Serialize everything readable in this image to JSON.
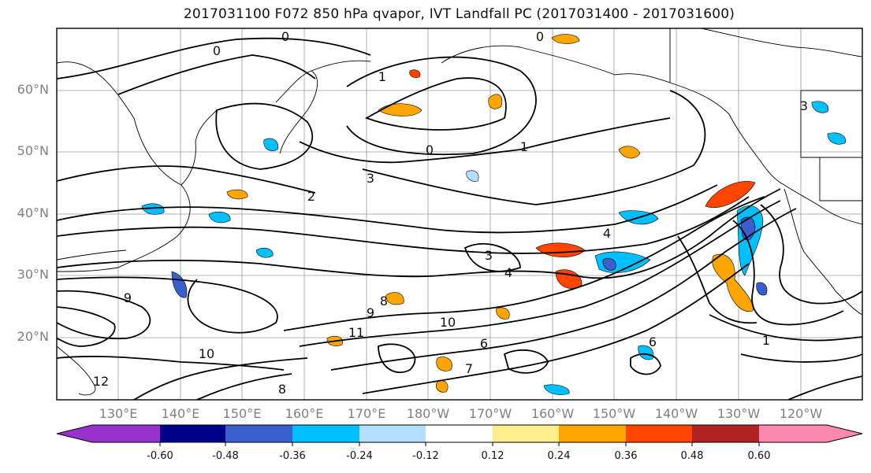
{
  "title": "2017031100 F072 850 hPa qvapor, IVT Landfall PC (2017031400 - 2017031600)",
  "lat_labels": [
    "60°N",
    "50°N",
    "40°N",
    "30°N",
    "20°N"
  ],
  "lon_labels": [
    "130°E",
    "140°E",
    "150°E",
    "160°E",
    "170°E",
    "180°W",
    "170°W",
    "160°W",
    "150°W",
    "140°W",
    "130°W",
    "120°W"
  ],
  "contour_labels": [
    "0",
    "0",
    "0",
    "0",
    "1",
    "1",
    "1",
    "2",
    "3",
    "3",
    "3",
    "4",
    "4",
    "6",
    "6",
    "7",
    "8",
    "8",
    "9",
    "9",
    "10",
    "10",
    "11",
    "12"
  ],
  "colorbar": {
    "ticks": [
      "-0.60",
      "-0.48",
      "-0.36",
      "-0.24",
      "-0.12",
      "0.12",
      "0.24",
      "0.36",
      "0.48",
      "0.60"
    ],
    "colors": [
      "#9932cc",
      "#00008b",
      "#3a5fcd",
      "#00bfff",
      "#b3e0ff",
      "#ffffff",
      "#ffec8b",
      "#ffa500",
      "#ff4500",
      "#b22222",
      "#ff88b0"
    ]
  }
}
